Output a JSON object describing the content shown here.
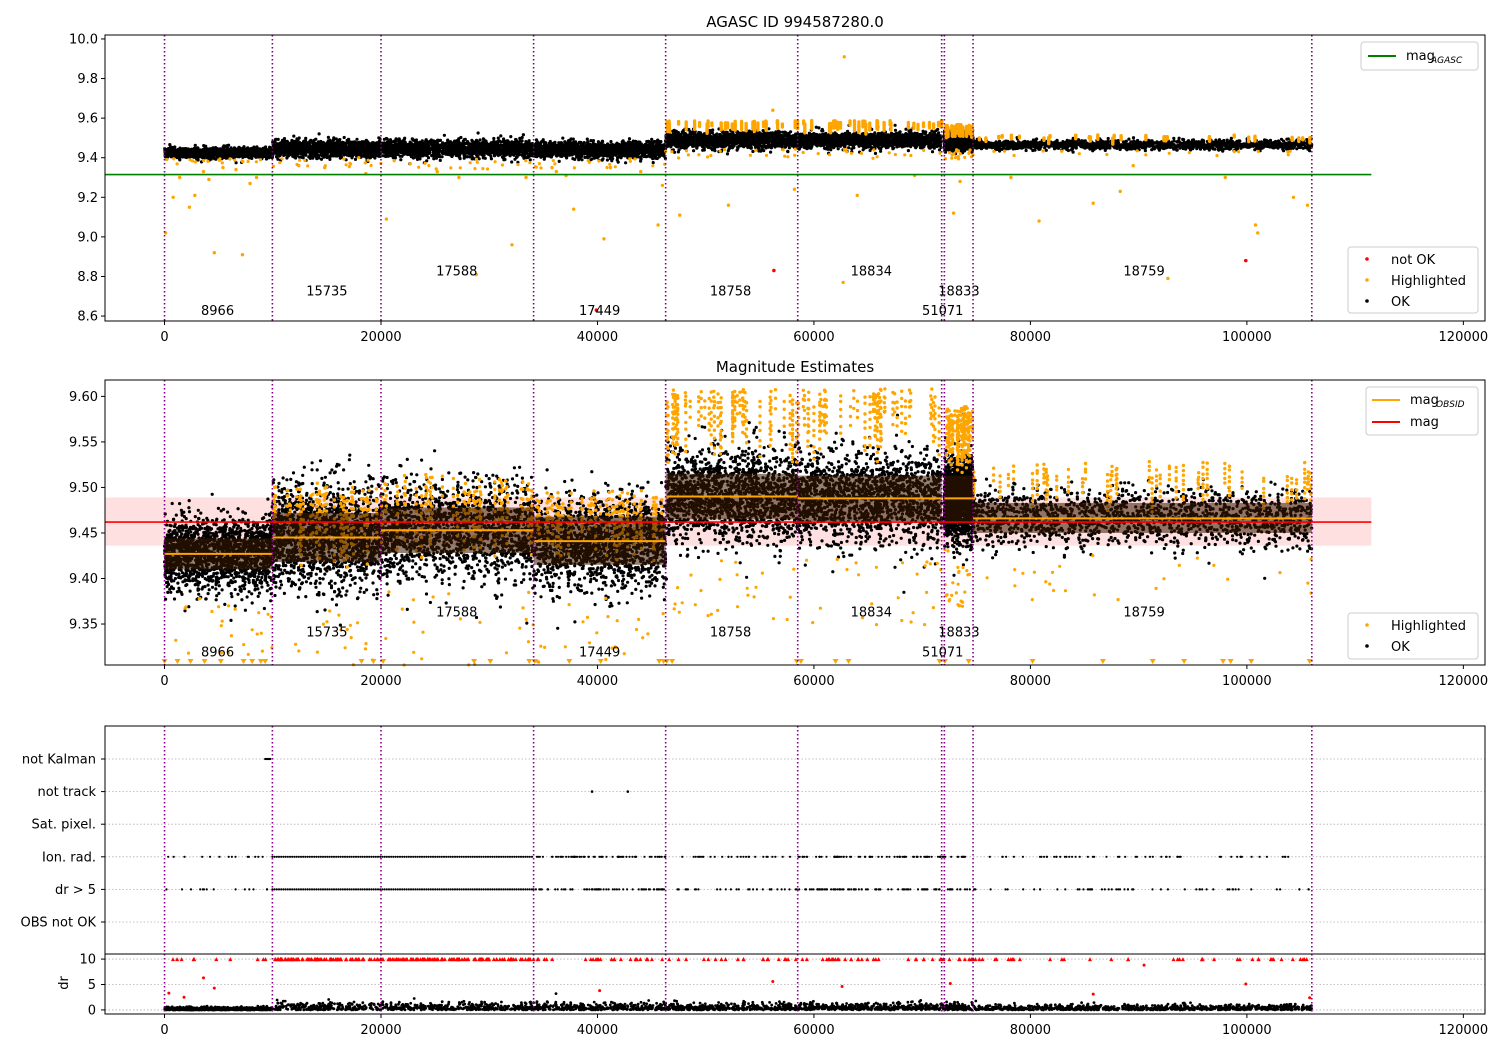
{
  "chart_data": [
    {
      "type": "scatter",
      "title": "AGASC ID 994587280.0",
      "xlim": [
        -5500,
        122000
      ],
      "ylim": [
        8.575,
        10.02
      ],
      "xticks": [
        0,
        20000,
        40000,
        60000,
        80000,
        100000,
        120000
      ],
      "yticks": [
        8.6,
        8.8,
        9.0,
        9.2,
        9.4,
        9.6,
        9.8,
        10.0
      ],
      "obs_boundaries": [
        0,
        9966,
        20000,
        34100,
        46300,
        58500,
        71800,
        72050,
        74700,
        106000
      ],
      "obs_labels": [
        {
          "text": "8966",
          "x": 4900,
          "y": 8.63
        },
        {
          "text": "15735",
          "x": 15000,
          "y": 8.73
        },
        {
          "text": "17588",
          "x": 27000,
          "y": 8.83
        },
        {
          "text": "17449",
          "x": 40200,
          "y": 8.63
        },
        {
          "text": "18758",
          "x": 52300,
          "y": 8.73
        },
        {
          "text": "18834",
          "x": 65300,
          "y": 8.83
        },
        {
          "text": "51071",
          "x": 71900,
          "y": 8.63
        },
        {
          "text": "18833",
          "x": 73400,
          "y": 8.73
        },
        {
          "text": "18759",
          "x": 90500,
          "y": 8.83
        }
      ],
      "reference_line": {
        "name": "mag_AGASC",
        "y": 9.315,
        "x": [
          -5500,
          111500
        ],
        "color": "#008000"
      },
      "segments": [
        {
          "x": [
            0,
            9966
          ],
          "center": 9.425,
          "spread": 0.012,
          "hl_upper": null
        },
        {
          "x": [
            9966,
            20000
          ],
          "center": 9.445,
          "spread": 0.02,
          "hl_upper": null
        },
        {
          "x": [
            20000,
            34100
          ],
          "center": 9.445,
          "spread": 0.022,
          "hl_upper": null
        },
        {
          "x": [
            34100,
            46300
          ],
          "center": 9.44,
          "spread": 0.02,
          "hl_upper": null
        },
        {
          "x": [
            46300,
            58500
          ],
          "center": 9.49,
          "spread": 0.02,
          "hl_upper": 9.59
        },
        {
          "x": [
            58500,
            71800
          ],
          "center": 9.488,
          "spread": 0.02,
          "hl_upper": 9.59
        },
        {
          "x": [
            72050,
            74700
          ],
          "center": 9.485,
          "spread": 0.02,
          "hl_upper": 9.57
        },
        {
          "x": [
            74700,
            106000
          ],
          "center": 9.465,
          "spread": 0.012,
          "hl_upper": 9.52
        }
      ],
      "highlighted_outliers": [
        {
          "x": 100,
          "y": 9.02
        },
        {
          "x": 800,
          "y": 9.2
        },
        {
          "x": 1400,
          "y": 9.3
        },
        {
          "x": 2300,
          "y": 9.15
        },
        {
          "x": 2800,
          "y": 9.21
        },
        {
          "x": 3600,
          "y": 9.33
        },
        {
          "x": 4100,
          "y": 9.29
        },
        {
          "x": 4600,
          "y": 8.92
        },
        {
          "x": 5400,
          "y": 9.35
        },
        {
          "x": 6600,
          "y": 9.34
        },
        {
          "x": 7200,
          "y": 8.91
        },
        {
          "x": 7900,
          "y": 9.27
        },
        {
          "x": 8500,
          "y": 9.3
        },
        {
          "x": 12400,
          "y": 9.36
        },
        {
          "x": 14800,
          "y": 9.35
        },
        {
          "x": 18600,
          "y": 9.32
        },
        {
          "x": 20500,
          "y": 9.09
        },
        {
          "x": 22700,
          "y": 9.37
        },
        {
          "x": 25200,
          "y": 9.33
        },
        {
          "x": 27200,
          "y": 9.3
        },
        {
          "x": 28800,
          "y": 8.81
        },
        {
          "x": 32100,
          "y": 8.96
        },
        {
          "x": 33400,
          "y": 9.3
        },
        {
          "x": 35800,
          "y": 9.35
        },
        {
          "x": 36200,
          "y": 9.33
        },
        {
          "x": 37100,
          "y": 9.31
        },
        {
          "x": 37800,
          "y": 9.14
        },
        {
          "x": 40600,
          "y": 8.99
        },
        {
          "x": 41200,
          "y": 9.35
        },
        {
          "x": 44000,
          "y": 9.33
        },
        {
          "x": 45600,
          "y": 9.06
        },
        {
          "x": 46000,
          "y": 9.26
        },
        {
          "x": 47600,
          "y": 9.11
        },
        {
          "x": 52100,
          "y": 9.16
        },
        {
          "x": 56200,
          "y": 9.64
        },
        {
          "x": 58200,
          "y": 9.24
        },
        {
          "x": 62800,
          "y": 9.91
        },
        {
          "x": 62700,
          "y": 8.77
        },
        {
          "x": 64000,
          "y": 9.21
        },
        {
          "x": 69300,
          "y": 9.31
        },
        {
          "x": 72900,
          "y": 9.12
        },
        {
          "x": 73500,
          "y": 9.28
        },
        {
          "x": 78200,
          "y": 9.3
        },
        {
          "x": 80800,
          "y": 9.08
        },
        {
          "x": 85800,
          "y": 9.17
        },
        {
          "x": 88300,
          "y": 9.23
        },
        {
          "x": 89500,
          "y": 9.36
        },
        {
          "x": 92700,
          "y": 8.79
        },
        {
          "x": 98000,
          "y": 9.3
        },
        {
          "x": 100800,
          "y": 9.06
        },
        {
          "x": 101000,
          "y": 9.02
        },
        {
          "x": 104300,
          "y": 9.2
        },
        {
          "x": 105600,
          "y": 9.16
        }
      ],
      "not_ok_points": [
        {
          "x": 39900,
          "y": 8.63
        },
        {
          "x": 56300,
          "y": 8.83
        },
        {
          "x": 99900,
          "y": 8.88
        }
      ],
      "legend_position": "top-right and bottom-right",
      "series": [
        {
          "name": "mag",
          "subscript": "AGASC",
          "color": "#008000"
        },
        {
          "name": "not OK",
          "color": "#ff0000"
        },
        {
          "name": "Highlighted",
          "color": "#ffa500"
        },
        {
          "name": "OK",
          "color": "#000000"
        }
      ]
    },
    {
      "type": "scatter",
      "title": "Magnitude Estimates",
      "xlim": [
        -5500,
        122000
      ],
      "ylim": [
        9.305,
        9.618
      ],
      "xticks": [
        0,
        20000,
        40000,
        60000,
        80000,
        100000,
        120000
      ],
      "yticks": [
        9.35,
        9.4,
        9.45,
        9.5,
        9.55,
        9.6
      ],
      "obs_boundaries": [
        0,
        9966,
        20000,
        34100,
        46300,
        58500,
        71800,
        72050,
        74700,
        106000
      ],
      "obs_labels": [
        {
          "text": "8966",
          "x": 4900,
          "y": 9.32
        },
        {
          "text": "15735",
          "x": 15000,
          "y": 9.342
        },
        {
          "text": "17588",
          "x": 27000,
          "y": 9.364
        },
        {
          "text": "17449",
          "x": 40200,
          "y": 9.32
        },
        {
          "text": "18758",
          "x": 52300,
          "y": 9.342
        },
        {
          "text": "18834",
          "x": 65300,
          "y": 9.364
        },
        {
          "text": "51071",
          "x": 71900,
          "y": 9.32
        },
        {
          "text": "18833",
          "x": 73400,
          "y": 9.342
        },
        {
          "text": "18759",
          "x": 90500,
          "y": 9.364
        }
      ],
      "mean_mag": {
        "name": "mag",
        "y": 9.462,
        "band": [
          9.436,
          9.489
        ],
        "x": [
          -5500,
          111500
        ],
        "color": "#ff0000"
      },
      "obsid_means": [
        {
          "x": [
            0,
            9966
          ],
          "y": 9.427,
          "band": [
            9.41,
            9.444
          ]
        },
        {
          "x": [
            9966,
            20000
          ],
          "y": 9.445,
          "band": [
            9.418,
            9.472
          ]
        },
        {
          "x": [
            20000,
            34100
          ],
          "y": 9.453,
          "band": [
            9.428,
            9.478
          ]
        },
        {
          "x": [
            34100,
            46300
          ],
          "y": 9.441,
          "band": [
            9.415,
            9.468
          ]
        },
        {
          "x": [
            46300,
            58500
          ],
          "y": 9.49,
          "band": [
            9.465,
            9.515
          ]
        },
        {
          "x": [
            58500,
            71800
          ],
          "y": 9.488,
          "band": [
            9.463,
            9.513
          ]
        },
        {
          "x": [
            72050,
            74700
          ],
          "y": 9.488,
          "band": [
            9.463,
            9.513
          ]
        },
        {
          "x": [
            74700,
            106000
          ],
          "y": 9.466,
          "band": [
            9.45,
            9.483
          ]
        }
      ],
      "segments": [
        {
          "x": [
            0,
            9966
          ],
          "center": 9.427,
          "spread": 0.02,
          "hl_upper": null
        },
        {
          "x": [
            9966,
            20000
          ],
          "center": 9.445,
          "spread": 0.028,
          "hl_upper": 9.505
        },
        {
          "x": [
            20000,
            34100
          ],
          "center": 9.453,
          "spread": 0.028,
          "hl_upper": 9.515
        },
        {
          "x": [
            34100,
            46300
          ],
          "center": 9.441,
          "spread": 0.025,
          "hl_upper": 9.5
        },
        {
          "x": [
            46300,
            58500
          ],
          "center": 9.49,
          "spread": 0.025,
          "hl_upper": 9.61
        },
        {
          "x": [
            58500,
            71800
          ],
          "center": 9.488,
          "spread": 0.025,
          "hl_upper": 9.61
        },
        {
          "x": [
            72050,
            74700
          ],
          "center": 9.488,
          "spread": 0.022,
          "hl_upper": 9.59
        },
        {
          "x": [
            74700,
            106000
          ],
          "center": 9.466,
          "spread": 0.016,
          "hl_upper": 9.53
        }
      ],
      "low_markers_x": [
        0,
        1200,
        2400,
        3700,
        5200,
        7300,
        8100,
        8900,
        9300,
        18200,
        19300,
        20200,
        28600,
        30100,
        33700,
        34200,
        37400,
        40300,
        45700,
        46100,
        46400,
        46900,
        58400,
        58800,
        62000,
        63200,
        71600,
        72100,
        74300,
        80200,
        86700,
        91300,
        94200,
        97800,
        98500,
        100400,
        105800
      ],
      "legend_position": "top-right and bottom-right",
      "series": [
        {
          "name": "mag",
          "subscript": "OBSID",
          "color": "#ffa500"
        },
        {
          "name": "mag",
          "color": "#ff0000"
        },
        {
          "name": "Highlighted",
          "color": "#ffa500"
        },
        {
          "name": "OK",
          "color": "#000000"
        }
      ]
    },
    {
      "type": "scatter",
      "title": "",
      "xlim": [
        -5500,
        122000
      ],
      "xticks": [
        0,
        20000,
        40000,
        60000,
        80000,
        100000,
        120000
      ],
      "flag_rows": [
        "not Kalman",
        "not track",
        "Sat. pixel.",
        "Ion. rad.",
        "dr > 5",
        "OBS not OK"
      ],
      "flag_spans": {
        "not Kalman": [
          [
            9300,
            9800
          ]
        ],
        "not track": [
          [
            39500,
            39500
          ],
          [
            42800,
            42800
          ]
        ],
        "Sat. pixel.": [],
        "Ion. rad.": [
          [
            9966,
            34100
          ]
        ],
        "dr > 5": [
          [
            9966,
            34100
          ]
        ],
        "OBS not OK": []
      },
      "flag_sparse_rows": [
        "Ion. rad.",
        "dr > 5"
      ],
      "obs_boundaries": [
        0,
        9966,
        20000,
        34100,
        46300,
        58500,
        71800,
        72050,
        74700,
        106000
      ]
    },
    {
      "type": "scatter",
      "title": "",
      "ylabel": "dr",
      "xlim": [
        -5500,
        122000
      ],
      "ylim": [
        -0.8,
        11
      ],
      "yticks": [
        0,
        5,
        10
      ],
      "xticks": [
        0,
        20000,
        40000,
        60000,
        80000,
        100000,
        120000
      ],
      "capped_value": 10,
      "dr_outliers": [
        {
          "x": 400,
          "y": 3.3
        },
        {
          "x": 1800,
          "y": 2.5
        },
        {
          "x": 3600,
          "y": 6.3
        },
        {
          "x": 4600,
          "y": 4.3
        },
        {
          "x": 40200,
          "y": 3.8
        },
        {
          "x": 56200,
          "y": 5.6
        },
        {
          "x": 62600,
          "y": 4.6
        },
        {
          "x": 72600,
          "y": 5.2
        },
        {
          "x": 85800,
          "y": 3.1
        },
        {
          "x": 90500,
          "y": 8.8
        },
        {
          "x": 99900,
          "y": 5.1
        },
        {
          "x": 105800,
          "y": 2.4
        }
      ],
      "obs_boundaries": [
        0,
        9966,
        20000,
        34100,
        46300,
        58500,
        71800,
        72050,
        74700,
        106000
      ]
    }
  ]
}
